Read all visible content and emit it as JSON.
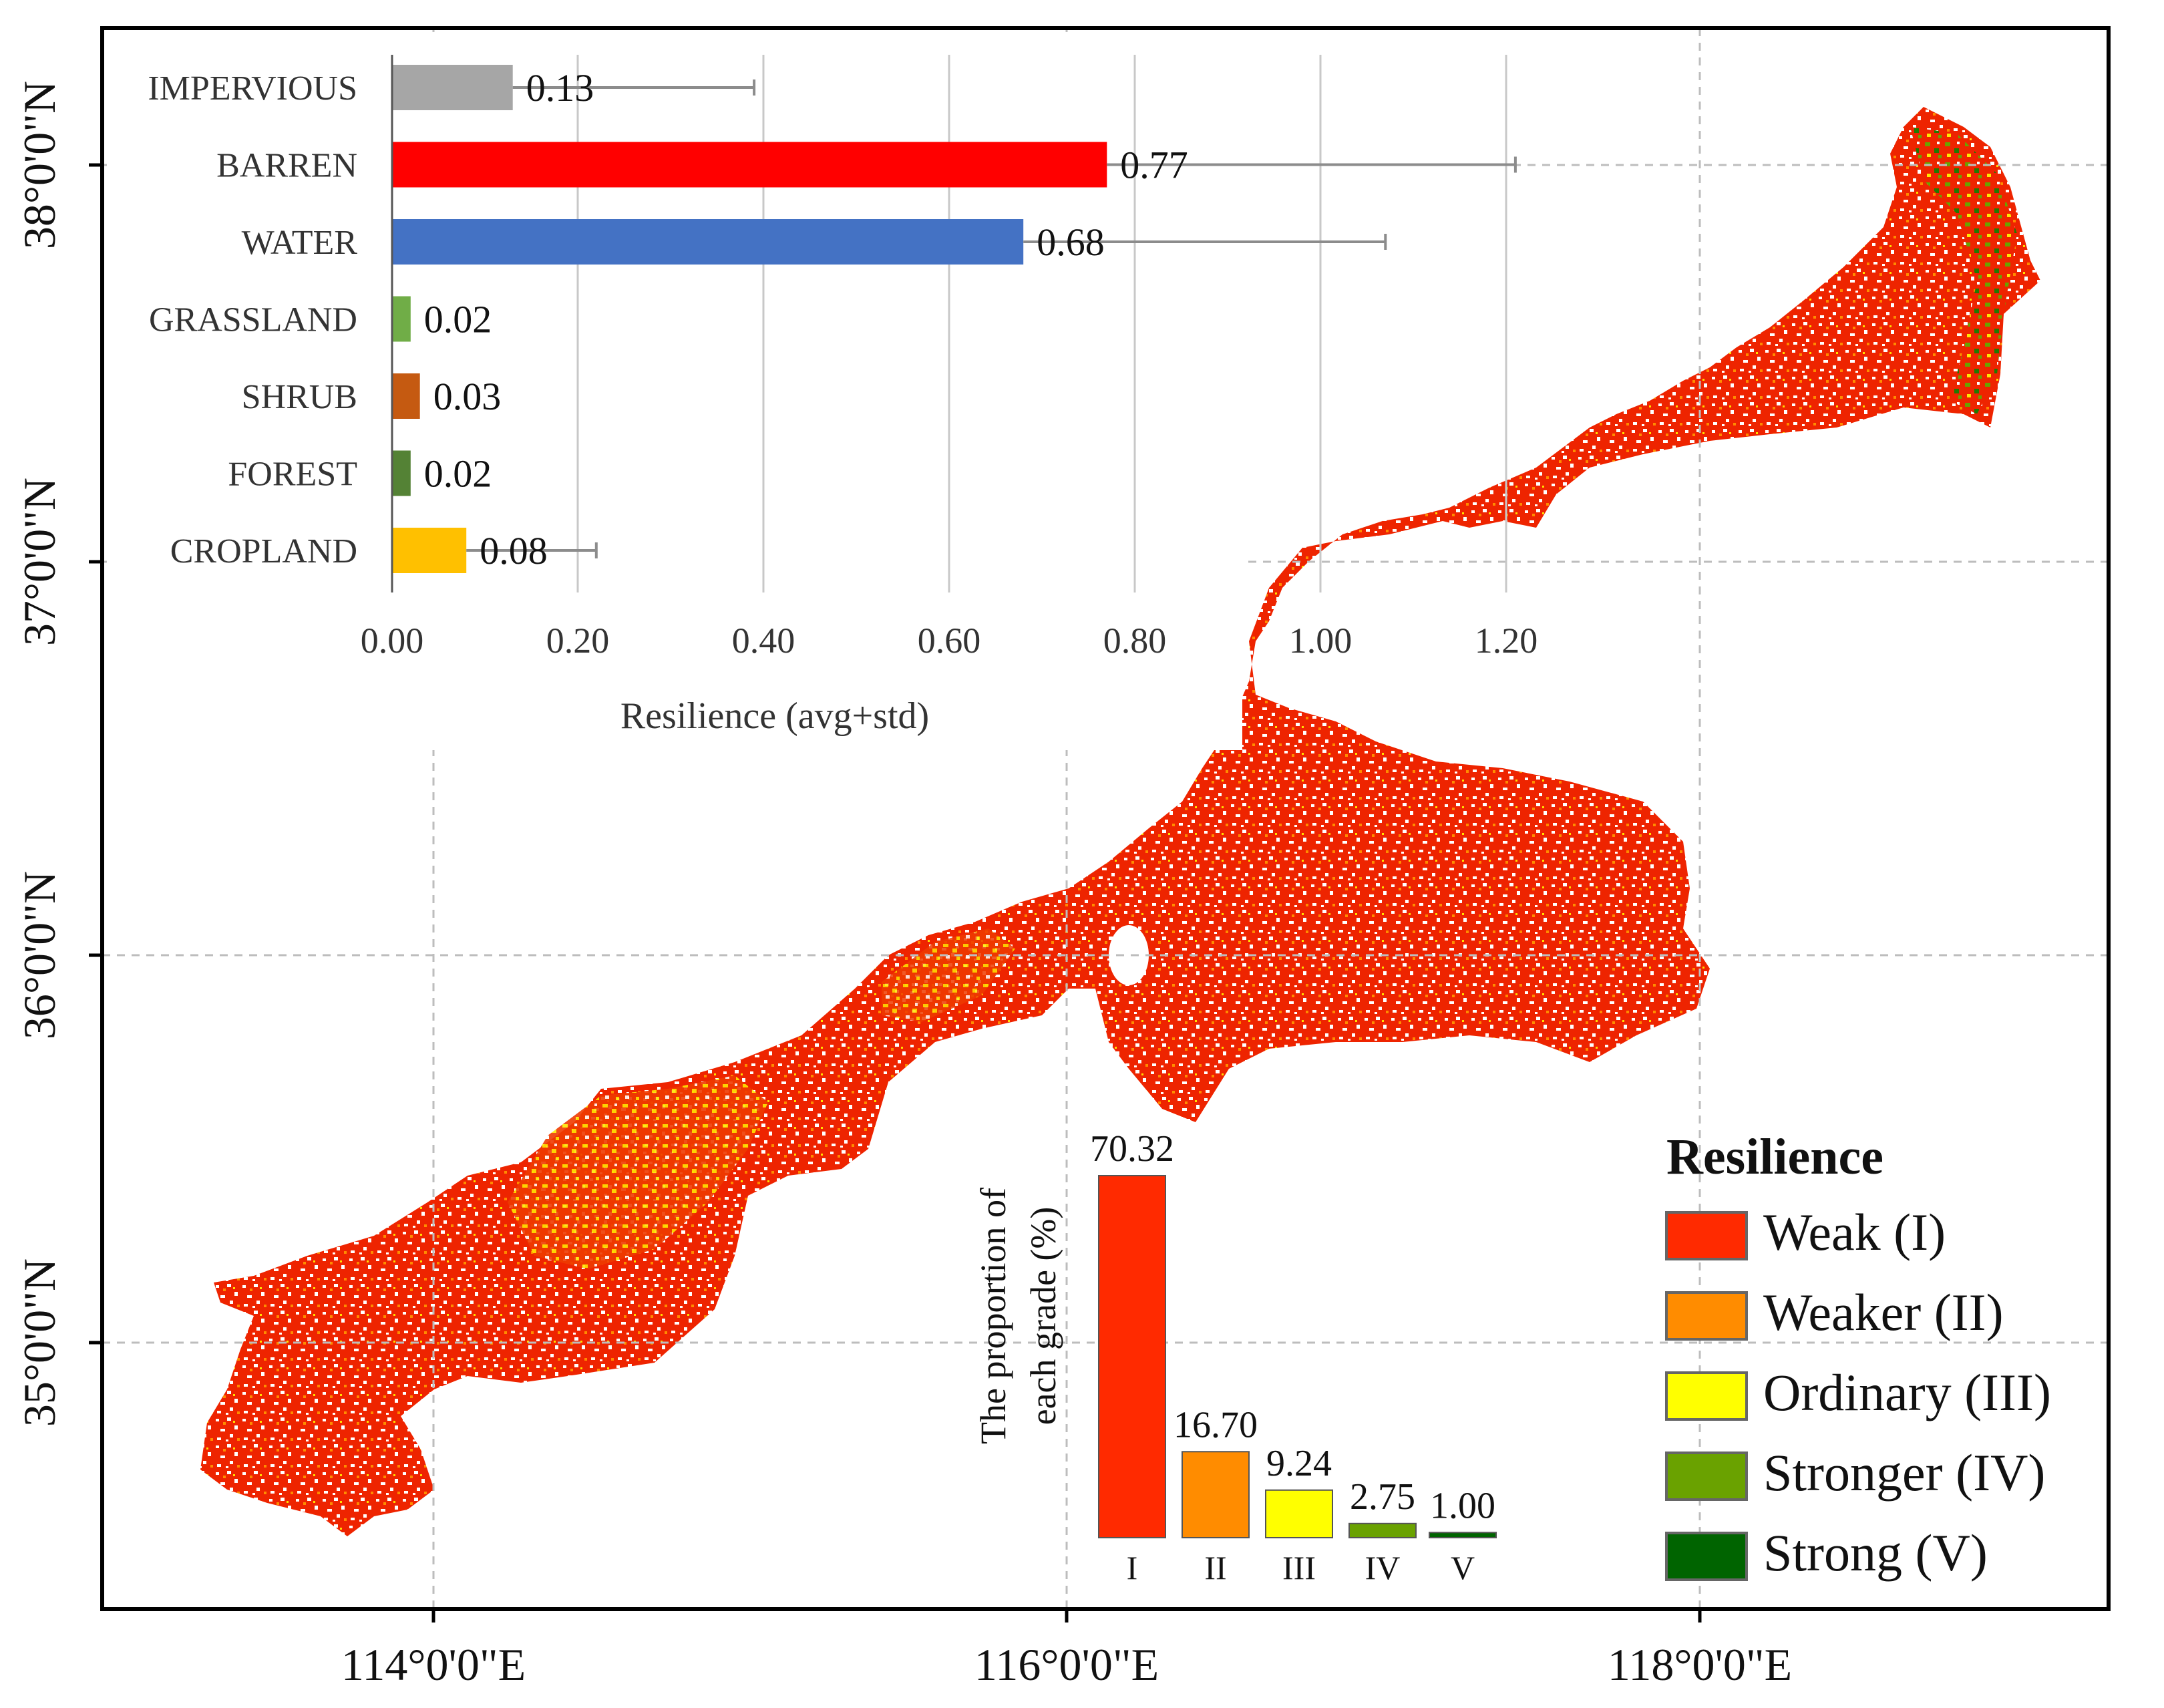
{
  "map": {
    "lat_labels": [
      "38°0'0\"N",
      "37°0'0\"N",
      "36°0'0\"N",
      "35°0'0\"N"
    ],
    "lon_labels": [
      "114°0'0\"E",
      "116°0'0\"E",
      "118°0'0\"E"
    ]
  },
  "legend": {
    "title": "Resilience",
    "items": [
      {
        "label": "Weak (I)",
        "color": "#ff2a00"
      },
      {
        "label": "Weaker (II)",
        "color": "#ff8c00"
      },
      {
        "label": "Ordinary (III)",
        "color": "#ffff00"
      },
      {
        "label": "Stronger (IV)",
        "color": "#6aa200"
      },
      {
        "label": "Strong (V)",
        "color": "#006400"
      }
    ]
  },
  "chart_data": [
    {
      "type": "bar",
      "orientation": "horizontal",
      "categories": [
        "IMPERVIOUS",
        "BARREN",
        "WATER",
        "GRASSLAND",
        "SHRUB",
        "FOREST",
        "CROPLAND"
      ],
      "values": [
        0.13,
        0.77,
        0.68,
        0.02,
        0.03,
        0.02,
        0.08
      ],
      "value_labels": [
        "0.13",
        "0.77",
        "0.68",
        "0.02",
        "0.03",
        "0.02",
        "0.08"
      ],
      "std": [
        0.26,
        0.44,
        0.39,
        0.0,
        0.0,
        0.0,
        0.14
      ],
      "colors": [
        "#a6a6a6",
        "#ff0000",
        "#4472c4",
        "#70ad47",
        "#c55a11",
        "#548235",
        "#ffc000"
      ],
      "xlim": [
        0,
        1.2
      ],
      "xticks": [
        "0.00",
        "0.20",
        "0.40",
        "0.60",
        "0.80",
        "1.00",
        "1.20"
      ],
      "xlabel": "Resilience (avg+std)",
      "grid": true
    },
    {
      "type": "bar",
      "categories": [
        "I",
        "II",
        "III",
        "IV",
        "V"
      ],
      "values": [
        70.32,
        16.7,
        9.24,
        2.75,
        1.0
      ],
      "value_labels": [
        "70.32",
        "16.70",
        "9.24",
        "2.75",
        "1.00"
      ],
      "colors": [
        "#ff2a00",
        "#ff8c00",
        "#ffff00",
        "#6aa200",
        "#006400"
      ],
      "ylabel": "The proportion of each grade (%)",
      "ylim": [
        0,
        72
      ]
    }
  ]
}
